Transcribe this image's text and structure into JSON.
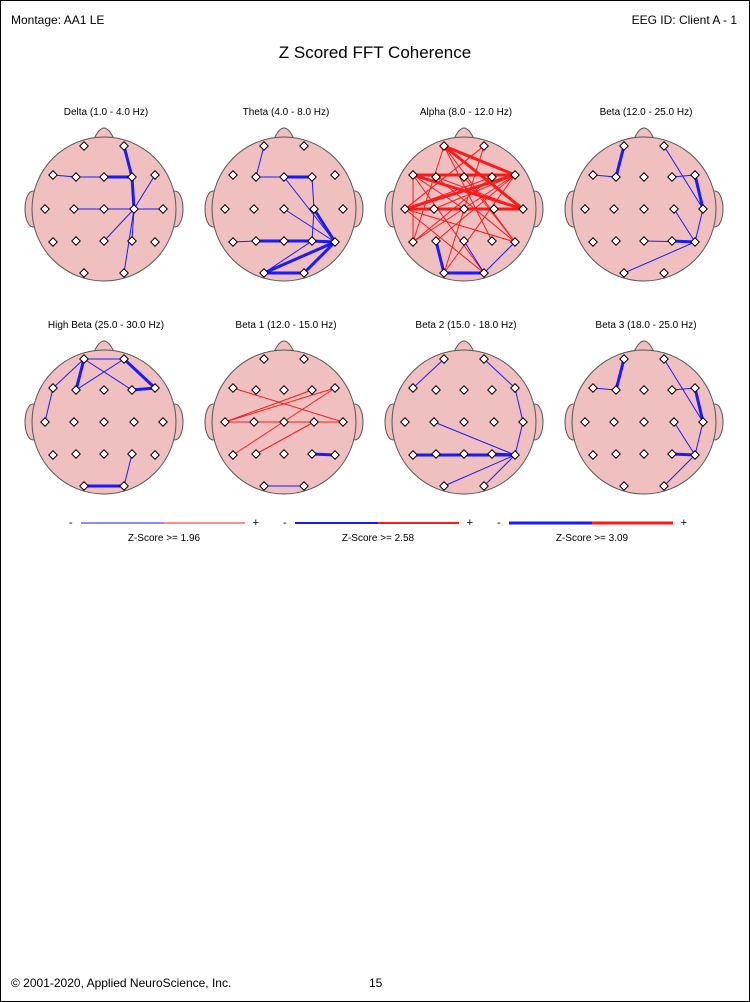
{
  "header": {
    "montage": "Montage:  AA1 LE",
    "eeg_id": "EEG ID:  Client A - 1"
  },
  "title": "Z Scored FFT Coherence",
  "colors": {
    "head": "#f0c0c0",
    "negative": "#1a1aff",
    "positive": "#ff1a1a"
  },
  "electrodes": [
    "Fp1",
    "Fp2",
    "F7",
    "F3",
    "Fz",
    "F4",
    "F8",
    "T3",
    "C3",
    "Cz",
    "C4",
    "T4",
    "T5",
    "P3",
    "Pz",
    "P4",
    "T6",
    "O1",
    "O2"
  ],
  "bands": [
    {
      "title": "Delta (1.0 - 4.0 Hz)",
      "connections": [
        [
          "F7",
          "F3",
          "neg",
          1
        ],
        [
          "F3",
          "Fz",
          "neg",
          1
        ],
        [
          "Fz",
          "F4",
          "neg",
          3
        ],
        [
          "Fp2",
          "F4",
          "neg",
          3
        ],
        [
          "F4",
          "C4",
          "neg",
          3
        ],
        [
          "Cz",
          "C4",
          "neg",
          1
        ],
        [
          "C3",
          "C4",
          "neg",
          1
        ],
        [
          "C4",
          "T4",
          "neg",
          1
        ],
        [
          "C4",
          "P4",
          "neg",
          1
        ],
        [
          "C4",
          "Pz",
          "neg",
          1
        ],
        [
          "C4",
          "O2",
          "neg",
          1
        ],
        [
          "F8",
          "C4",
          "neg",
          1
        ]
      ]
    },
    {
      "title": "Theta (4.0 - 8.0 Hz)",
      "connections": [
        [
          "Fp1",
          "F3",
          "neg",
          1
        ],
        [
          "F3",
          "Fz",
          "neg",
          1
        ],
        [
          "Fz",
          "F4",
          "neg",
          3
        ],
        [
          "F4",
          "C4",
          "neg",
          1
        ],
        [
          "C4",
          "T6",
          "neg",
          3
        ],
        [
          "P3",
          "Pz",
          "neg",
          3
        ],
        [
          "Pz",
          "P4",
          "neg",
          3
        ],
        [
          "P4",
          "T6",
          "neg",
          3
        ],
        [
          "T5",
          "P3",
          "neg",
          1
        ],
        [
          "Fz",
          "T6",
          "neg",
          1
        ],
        [
          "C4",
          "P4",
          "neg",
          1
        ],
        [
          "O1",
          "O2",
          "neg",
          3
        ],
        [
          "O1",
          "T6",
          "neg",
          3
        ],
        [
          "O2",
          "T6",
          "neg",
          3
        ],
        [
          "Cz",
          "T6",
          "neg",
          1
        ],
        [
          "O1",
          "P4",
          "neg",
          1
        ]
      ]
    },
    {
      "title": "Alpha (8.0 - 12.0 Hz)",
      "connections": [
        [
          "Fp1",
          "F8",
          "pos",
          3
        ],
        [
          "Fp1",
          "T4",
          "pos",
          3
        ],
        [
          "F7",
          "F8",
          "pos",
          3
        ],
        [
          "F7",
          "T4",
          "pos",
          3
        ],
        [
          "T3",
          "T4",
          "pos",
          3
        ],
        [
          "T3",
          "F8",
          "pos",
          3
        ],
        [
          "T3",
          "C4",
          "pos",
          3
        ],
        [
          "T3",
          "F4",
          "pos",
          1
        ],
        [
          "T3",
          "Fp2",
          "pos",
          1
        ],
        [
          "F3",
          "T4",
          "pos",
          1
        ],
        [
          "F3",
          "T6",
          "pos",
          1
        ],
        [
          "C3",
          "T4",
          "pos",
          1
        ],
        [
          "C3",
          "F8",
          "pos",
          1
        ],
        [
          "Fz",
          "T6",
          "pos",
          1
        ],
        [
          "Fp1",
          "P4",
          "pos",
          1
        ],
        [
          "F7",
          "O2",
          "pos",
          1
        ],
        [
          "T5",
          "F8",
          "pos",
          1
        ],
        [
          "P3",
          "F8",
          "pos",
          1
        ],
        [
          "Fp2",
          "T3",
          "pos",
          1
        ],
        [
          "F4",
          "T5",
          "pos",
          1
        ],
        [
          "Fp1",
          "T6",
          "pos",
          1
        ],
        [
          "F7",
          "Cz",
          "pos",
          1
        ],
        [
          "Fp2",
          "O1",
          "pos",
          1
        ],
        [
          "F8",
          "O1",
          "pos",
          1
        ],
        [
          "T3",
          "O2",
          "pos",
          1
        ],
        [
          "Fp1",
          "T5",
          "pos",
          1
        ],
        [
          "F7",
          "T5",
          "pos",
          1
        ],
        [
          "T3",
          "T6",
          "pos",
          1
        ],
        [
          "O1",
          "O2",
          "neg",
          3
        ],
        [
          "P3",
          "O1",
          "neg",
          3
        ],
        [
          "O2",
          "T6",
          "neg",
          1
        ],
        [
          "Pz",
          "O2",
          "neg",
          1
        ]
      ]
    },
    {
      "title": "Beta (12.0 - 25.0 Hz)",
      "connections": [
        [
          "Fp1",
          "F3",
          "neg",
          3
        ],
        [
          "F7",
          "F3",
          "neg",
          1
        ],
        [
          "F4",
          "F8",
          "neg",
          1
        ],
        [
          "F8",
          "T4",
          "neg",
          3
        ],
        [
          "T4",
          "T6",
          "neg",
          1
        ],
        [
          "Fp2",
          "T4",
          "neg",
          1
        ],
        [
          "C4",
          "T6",
          "neg",
          1
        ],
        [
          "P4",
          "T6",
          "neg",
          3
        ],
        [
          "O1",
          "T6",
          "neg",
          1
        ],
        [
          "Pz",
          "T6",
          "neg",
          1
        ]
      ]
    },
    {
      "title": "High Beta (25.0 - 30.0 Hz)",
      "connections": [
        [
          "Fp1",
          "F3",
          "neg",
          3
        ],
        [
          "F7",
          "Fp1",
          "neg",
          1
        ],
        [
          "F7",
          "T3",
          "neg",
          1
        ],
        [
          "Fp1",
          "F4",
          "neg",
          1
        ],
        [
          "Fp1",
          "Fp2",
          "neg",
          1
        ],
        [
          "Fp2",
          "F8",
          "neg",
          3
        ],
        [
          "F4",
          "F8",
          "neg",
          3
        ],
        [
          "F3",
          "Fp2",
          "neg",
          1
        ],
        [
          "O1",
          "O2",
          "neg",
          3
        ],
        [
          "P4",
          "O2",
          "neg",
          1
        ]
      ]
    },
    {
      "title": "Beta 1 (12.0 - 15.0 Hz)",
      "connections": [
        [
          "T3",
          "F8",
          "pos",
          1
        ],
        [
          "T3",
          "T4",
          "pos",
          1
        ],
        [
          "C3",
          "T4",
          "pos",
          1
        ],
        [
          "T3",
          "F4",
          "pos",
          1
        ],
        [
          "T5",
          "F8",
          "pos",
          1
        ],
        [
          "F7",
          "T4",
          "pos",
          1
        ],
        [
          "P3",
          "C4",
          "pos",
          1
        ],
        [
          "P4",
          "T6",
          "neg",
          3
        ],
        [
          "O1",
          "O2",
          "neg",
          1
        ]
      ]
    },
    {
      "title": "Beta 2 (15.0 - 18.0 Hz)",
      "connections": [
        [
          "Fp1",
          "F7",
          "neg",
          1
        ],
        [
          "Fp2",
          "F8",
          "neg",
          1
        ],
        [
          "F8",
          "T4",
          "neg",
          1
        ],
        [
          "T4",
          "T6",
          "neg",
          1
        ],
        [
          "P4",
          "T6",
          "neg",
          3
        ],
        [
          "P3",
          "T6",
          "neg",
          1
        ],
        [
          "Pz",
          "T6",
          "neg",
          1
        ],
        [
          "C3",
          "T6",
          "neg",
          1
        ],
        [
          "T5",
          "T6",
          "neg",
          3
        ],
        [
          "O2",
          "T6",
          "neg",
          1
        ],
        [
          "O1",
          "T6",
          "neg",
          1
        ]
      ]
    },
    {
      "title": "Beta 3 (18.0 - 25.0 Hz)",
      "connections": [
        [
          "Fp1",
          "F3",
          "neg",
          3
        ],
        [
          "F7",
          "F3",
          "neg",
          1
        ],
        [
          "F4",
          "F8",
          "neg",
          1
        ],
        [
          "F8",
          "T4",
          "neg",
          3
        ],
        [
          "Fp2",
          "T4",
          "neg",
          1
        ],
        [
          "T4",
          "T6",
          "neg",
          1
        ],
        [
          "C4",
          "T6",
          "neg",
          1
        ],
        [
          "P4",
          "T6",
          "neg",
          3
        ],
        [
          "O2",
          "T6",
          "neg",
          1
        ]
      ]
    }
  ],
  "legends": [
    {
      "minus": "-",
      "plus": "+",
      "label": "Z-Score >= 1.96",
      "weight": 1
    },
    {
      "minus": "-",
      "plus": "+",
      "label": "Z-Score >= 2.58",
      "weight": 2
    },
    {
      "minus": "-",
      "plus": "+",
      "label": "Z-Score >= 3.09",
      "weight": 3
    }
  ],
  "footer": {
    "copyright": "© 2001-2020, Applied NeuroScience, Inc.",
    "page_number": "15"
  }
}
